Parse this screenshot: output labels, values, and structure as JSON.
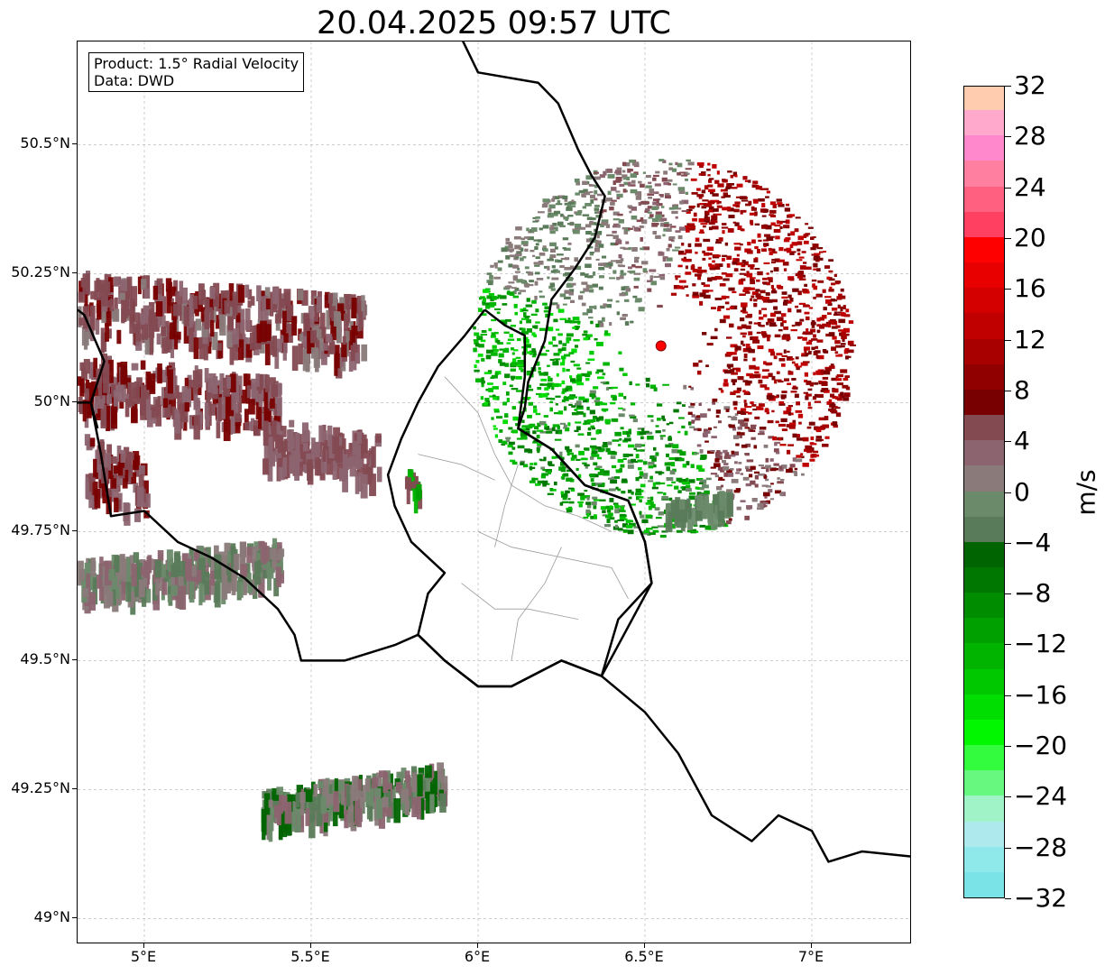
{
  "title": "20.04.2025 09:57 UTC",
  "info_box": {
    "line1": "Product: 1.5° Radial Velocity",
    "line2": "Data: DWD"
  },
  "map": {
    "lon_range": [
      4.8,
      7.3
    ],
    "lat_range": [
      48.95,
      50.7
    ],
    "lat_ticks": [
      {
        "value": 50.5,
        "label": "50.5°N"
      },
      {
        "value": 50.25,
        "label": "50.25°N"
      },
      {
        "value": 50.0,
        "label": "50°N"
      },
      {
        "value": 49.75,
        "label": "49.75°N"
      },
      {
        "value": 49.5,
        "label": "49.5°N"
      },
      {
        "value": 49.25,
        "label": "49.25°N"
      },
      {
        "value": 49.0,
        "label": "49°N"
      }
    ],
    "lon_ticks": [
      {
        "value": 5.0,
        "label": "5°E"
      },
      {
        "value": 5.5,
        "label": "5.5°E"
      },
      {
        "value": 6.0,
        "label": "6°E"
      },
      {
        "value": 6.5,
        "label": "6.5°E"
      },
      {
        "value": 7.0,
        "label": "7°E"
      }
    ],
    "gridlines": true,
    "radar_site": {
      "lon": 6.548,
      "lat": 50.11,
      "color": "#ff0000"
    }
  },
  "colorbar": {
    "unit": "m/s",
    "min": -32,
    "max": 32,
    "colors": [
      "#7ae3e8",
      "#8fe9ea",
      "#aee9ee",
      "#9ff3c6",
      "#66f87f",
      "#33fc3f",
      "#00f700",
      "#00dd00",
      "#00c800",
      "#00b400",
      "#00a000",
      "#008c00",
      "#007700",
      "#006400",
      "#5a7b5a",
      "#6a8a6a",
      "#8a7a7a",
      "#8c6470",
      "#844a52",
      "#780000",
      "#900000",
      "#a80000",
      "#c00000",
      "#d40000",
      "#e80000",
      "#ff0000",
      "#ff4060",
      "#ff6080",
      "#ff7fa0",
      "#ff88cc",
      "#ffaacc",
      "#ffccb0"
    ],
    "ticks": [
      "−32",
      "−28",
      "−24",
      "−20",
      "−16",
      "−12",
      "−8",
      "−4",
      "0",
      "4",
      "8",
      "12",
      "16",
      "20",
      "24",
      "28",
      "32"
    ],
    "tick_values": [
      -32,
      -28,
      -24,
      -20,
      -16,
      -12,
      -8,
      -4,
      0,
      4,
      8,
      12,
      16,
      20,
      24,
      28,
      32
    ]
  },
  "borders": {
    "country": [
      [
        [
          5.94,
          50.72
        ],
        [
          6.0,
          50.64
        ],
        [
          6.18,
          50.62
        ],
        [
          6.24,
          50.58
        ],
        [
          6.3,
          50.49
        ],
        [
          6.34,
          50.44
        ],
        [
          6.38,
          50.4
        ],
        [
          6.35,
          50.32
        ],
        [
          6.29,
          50.26
        ],
        [
          6.22,
          50.2
        ],
        [
          6.2,
          50.12
        ],
        [
          6.15,
          50.04
        ],
        [
          6.14,
          49.99
        ],
        [
          6.12,
          49.95
        ],
        [
          6.22,
          49.91
        ],
        [
          6.32,
          49.84
        ],
        [
          6.45,
          49.81
        ],
        [
          6.5,
          49.73
        ],
        [
          6.52,
          49.65
        ],
        [
          6.42,
          49.58
        ],
        [
          6.37,
          49.47
        ],
        [
          6.25,
          49.5
        ],
        [
          6.1,
          49.45
        ],
        [
          6.0,
          49.45
        ],
        [
          5.9,
          49.5
        ],
        [
          5.82,
          49.55
        ],
        [
          5.75,
          49.53
        ],
        [
          5.6,
          49.5
        ],
        [
          5.47,
          49.5
        ],
        [
          5.45,
          49.55
        ],
        [
          5.4,
          49.6
        ],
        [
          5.3,
          49.66
        ],
        [
          5.2,
          49.7
        ],
        [
          5.1,
          49.73
        ],
        [
          5.0,
          49.79
        ],
        [
          4.9,
          49.78
        ],
        [
          4.87,
          49.9
        ],
        [
          4.84,
          50.0
        ],
        [
          4.88,
          50.08
        ],
        [
          4.82,
          50.17
        ],
        [
          4.8,
          50.18
        ]
      ],
      [
        [
          4.8,
          50.0
        ],
        [
          4.84,
          50.0
        ],
        [
          4.86,
          49.95
        ]
      ],
      [
        [
          6.37,
          49.47
        ],
        [
          6.5,
          49.4
        ],
        [
          6.6,
          49.32
        ],
        [
          6.7,
          49.2
        ],
        [
          6.82,
          49.15
        ],
        [
          6.9,
          49.2
        ],
        [
          7.0,
          49.17
        ],
        [
          7.05,
          49.11
        ],
        [
          7.15,
          49.13
        ],
        [
          7.3,
          49.12
        ]
      ]
    ],
    "lux": [
      [
        [
          6.02,
          50.18
        ],
        [
          6.08,
          50.15
        ],
        [
          6.14,
          50.13
        ],
        [
          6.14,
          50.05
        ],
        [
          6.12,
          49.95
        ],
        [
          6.22,
          49.91
        ],
        [
          6.32,
          49.84
        ],
        [
          6.45,
          49.81
        ],
        [
          6.5,
          49.73
        ],
        [
          6.52,
          49.65
        ],
        [
          6.37,
          49.47
        ],
        [
          6.25,
          49.5
        ],
        [
          6.1,
          49.45
        ],
        [
          6.0,
          49.45
        ],
        [
          5.9,
          49.5
        ],
        [
          5.82,
          49.55
        ],
        [
          5.85,
          49.63
        ],
        [
          5.9,
          49.67
        ],
        [
          5.8,
          49.73
        ],
        [
          5.75,
          49.8
        ],
        [
          5.73,
          49.86
        ],
        [
          5.77,
          49.93
        ],
        [
          5.82,
          50.0
        ],
        [
          5.88,
          50.07
        ],
        [
          5.96,
          50.13
        ],
        [
          6.02,
          50.18
        ]
      ]
    ],
    "cantons": [
      [
        [
          5.9,
          50.05
        ],
        [
          6.0,
          49.98
        ],
        [
          6.05,
          49.9
        ],
        [
          6.1,
          49.84
        ],
        [
          6.2,
          49.8
        ],
        [
          6.3,
          49.78
        ],
        [
          6.4,
          49.75
        ]
      ],
      [
        [
          5.82,
          49.9
        ],
        [
          5.95,
          49.88
        ],
        [
          6.05,
          49.85
        ]
      ],
      [
        [
          6.0,
          49.75
        ],
        [
          6.1,
          49.72
        ],
        [
          6.25,
          49.7
        ],
        [
          6.4,
          49.68
        ],
        [
          6.45,
          49.62
        ]
      ],
      [
        [
          5.95,
          49.65
        ],
        [
          6.05,
          49.6
        ],
        [
          6.15,
          49.6
        ],
        [
          6.3,
          49.58
        ]
      ],
      [
        [
          6.1,
          49.5
        ],
        [
          6.12,
          49.58
        ],
        [
          6.2,
          49.65
        ],
        [
          6.25,
          49.72
        ]
      ],
      [
        [
          6.05,
          49.72
        ],
        [
          6.08,
          49.8
        ],
        [
          6.12,
          49.88
        ]
      ]
    ]
  }
}
